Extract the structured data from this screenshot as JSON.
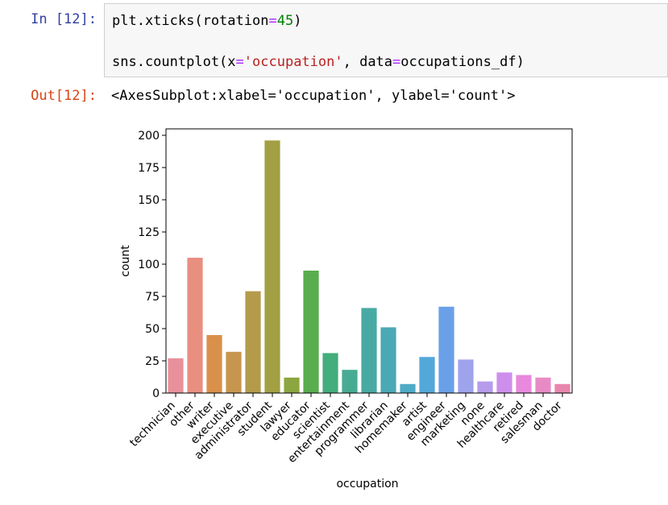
{
  "cell": {
    "in_prompt": "In [12]:",
    "out_prompt": "Out[12]:",
    "code_line1": {
      "fn": "plt.xticks(rotation",
      "op": "=",
      "num": "45",
      "close": ")"
    },
    "code_line2": {
      "fn": "sns.countplot(x",
      "op1": "=",
      "str": "'occupation'",
      "mid": ", data",
      "op2": "=",
      "rest": "occupations_df)"
    },
    "output_text": "<AxesSubplot:xlabel='occupation', ylabel='count'>"
  },
  "chart_data": {
    "type": "bar",
    "categories": [
      "technician",
      "other",
      "writer",
      "executive",
      "administrator",
      "student",
      "lawyer",
      "educator",
      "scientist",
      "entertainment",
      "programmer",
      "librarian",
      "homemaker",
      "artist",
      "engineer",
      "marketing",
      "none",
      "healthcare",
      "retired",
      "salesman",
      "doctor"
    ],
    "values": [
      27,
      105,
      45,
      32,
      79,
      196,
      12,
      95,
      31,
      18,
      66,
      51,
      7,
      28,
      67,
      26,
      9,
      16,
      14,
      12,
      7
    ],
    "colors": [
      "#e8919b",
      "#e88f80",
      "#d9904a",
      "#c7964e",
      "#b49b4c",
      "#a2a043",
      "#8ca641",
      "#59ad4e",
      "#43ad7c",
      "#47ab93",
      "#49aaa4",
      "#4aa9b4",
      "#4eabc7",
      "#53a8d9",
      "#6aa0e8",
      "#9ea3ec",
      "#b69ceb",
      "#ce8fec",
      "#e889dd",
      "#e88bc5",
      "#e886ad"
    ],
    "title": "",
    "xlabel": "occupation",
    "ylabel": "count",
    "ylim": [
      0,
      205
    ],
    "yticks": [
      0,
      25,
      50,
      75,
      100,
      125,
      150,
      175,
      200
    ],
    "ytick_labels": [
      "0",
      "25",
      "50",
      "75",
      "100",
      "125",
      "150",
      "175",
      "200"
    ],
    "xtick_rotation": 45,
    "grid": false
  }
}
